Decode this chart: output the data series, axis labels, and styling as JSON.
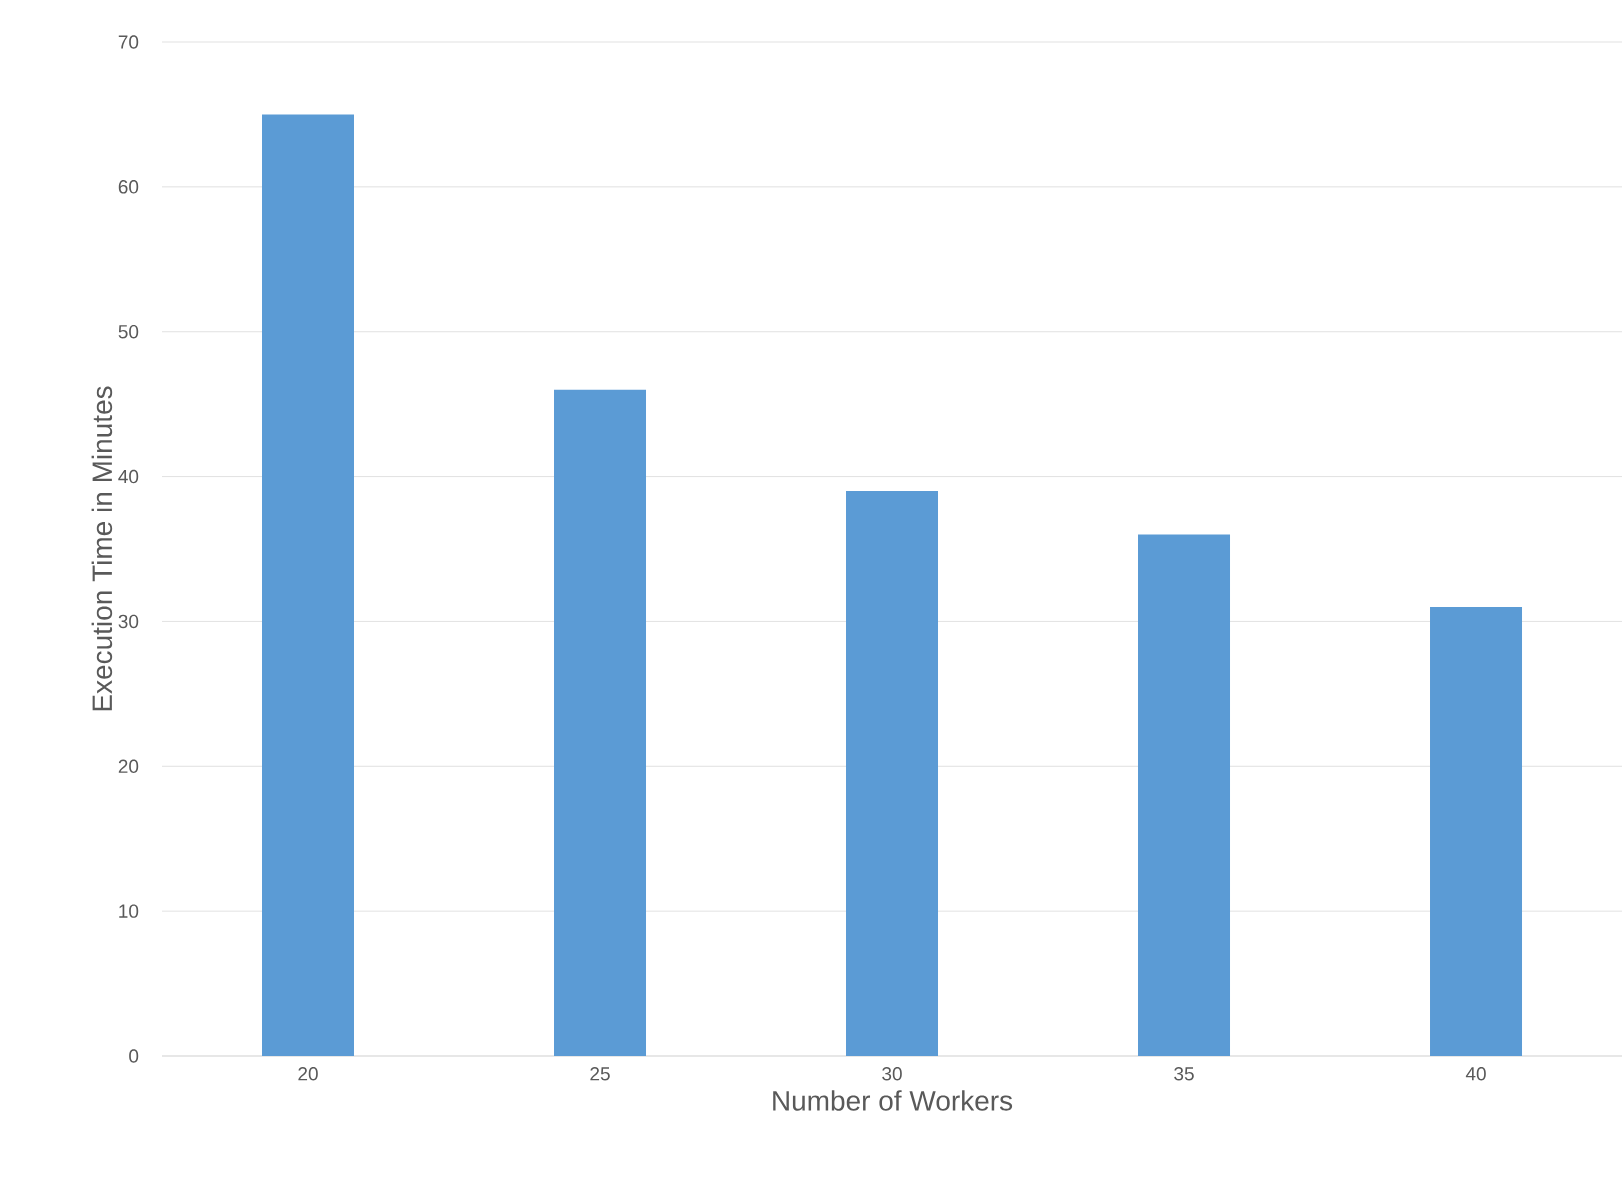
{
  "chart_data": {
    "type": "bar",
    "xlabel": "Number of Workers",
    "ylabel": "Execution Time in Minutes",
    "categories": [
      "20",
      "25",
      "30",
      "35",
      "40"
    ],
    "values": [
      65,
      46,
      39,
      36,
      31
    ],
    "color": "#5b9bd5",
    "ylim": [
      0,
      70
    ],
    "yticks": [
      0,
      10,
      20,
      30,
      40,
      50,
      60,
      70
    ],
    "grid": "y"
  }
}
